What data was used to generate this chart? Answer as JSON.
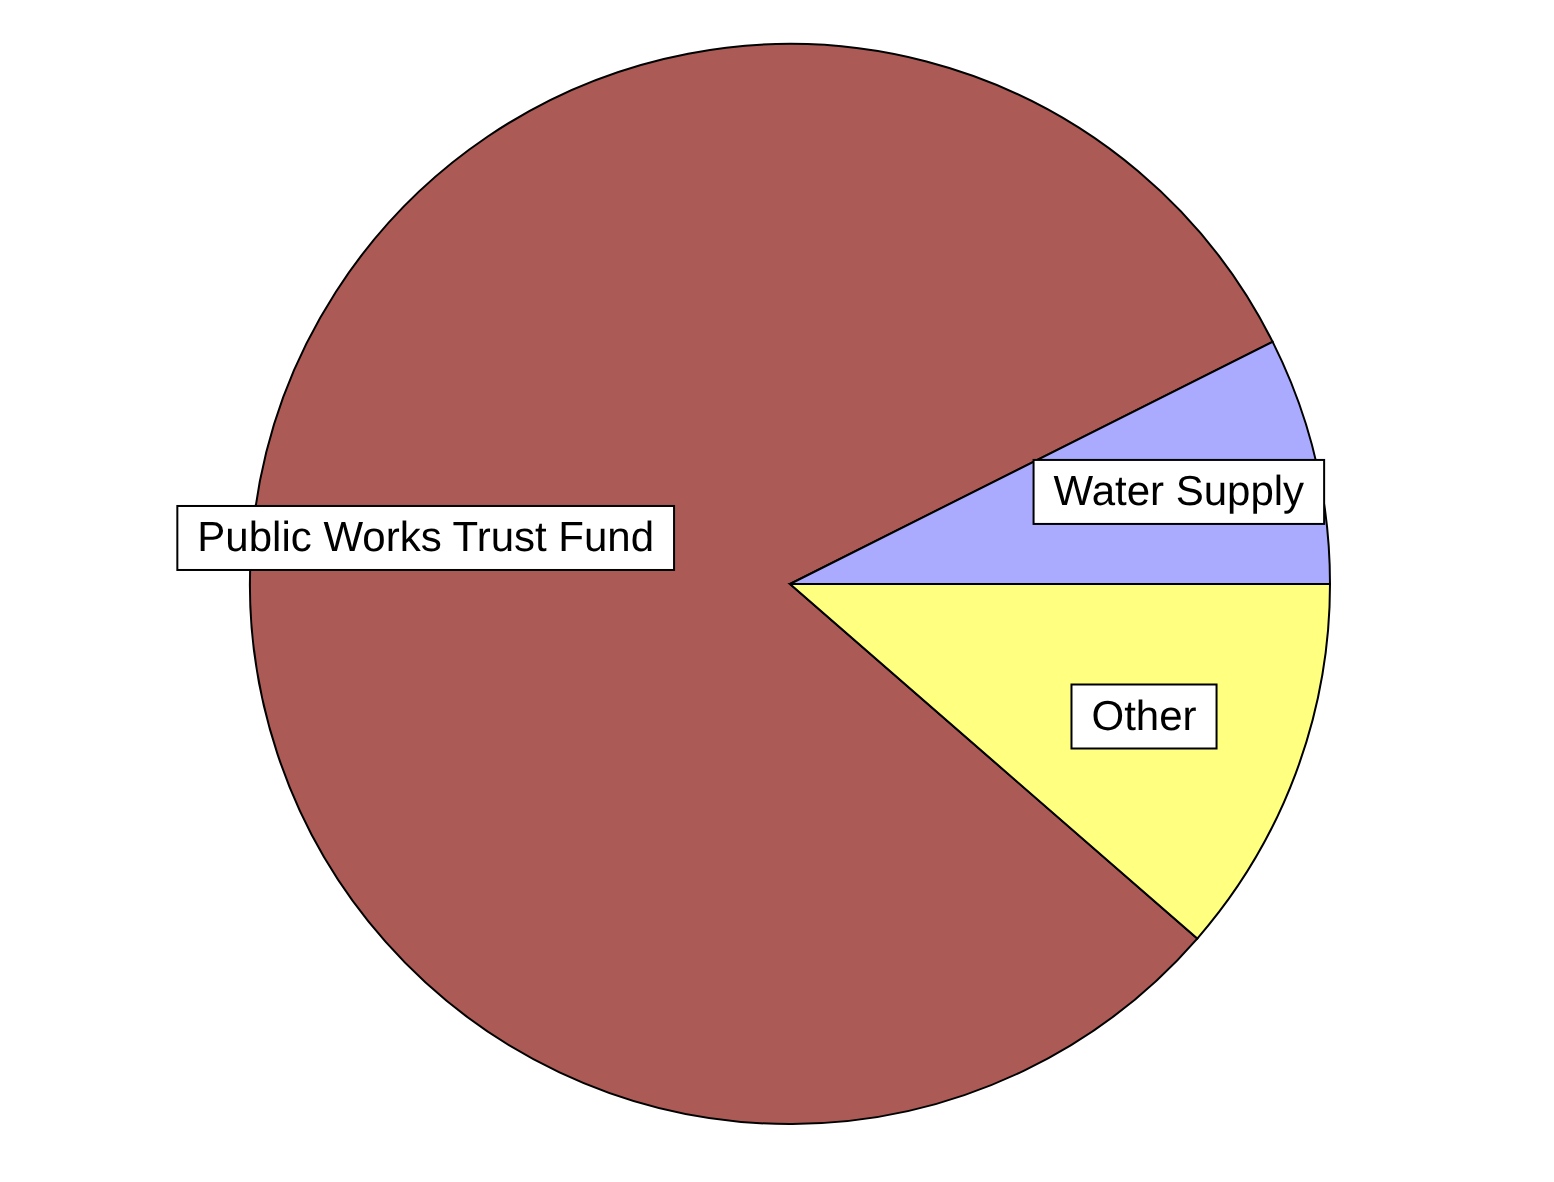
{
  "chart_data": {
    "type": "pie",
    "categories": [
      "Public Works Trust Fund",
      "Water Supply",
      "Other"
    ],
    "values": [
      81.2,
      7.4,
      11.4
    ],
    "colors": [
      "#ab5a55",
      "#aaaaff",
      "#ffff80"
    ]
  }
}
